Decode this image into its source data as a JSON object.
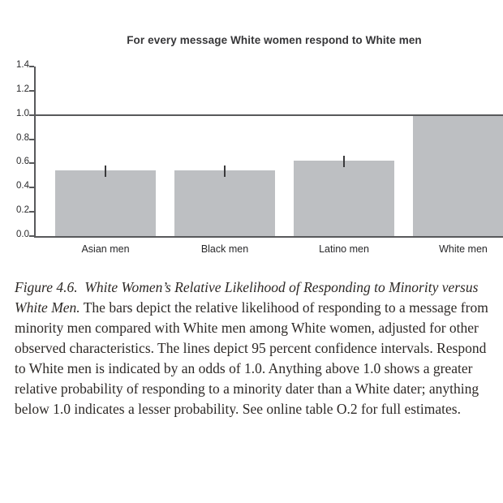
{
  "chart": {
    "title": "For every message White women respond to White men"
  },
  "chart_data": {
    "type": "bar",
    "title": "For every message White women respond to White men",
    "categories": [
      "Asian men",
      "Black men",
      "Latino men",
      "White men"
    ],
    "values": [
      0.54,
      0.54,
      0.62,
      1.0
    ],
    "error_bars": {
      "ci_low": [
        0.49,
        0.49,
        0.57,
        null
      ],
      "ci_high": [
        0.58,
        0.58,
        0.66,
        null
      ]
    },
    "reference_line_y": 1.0,
    "ylim": [
      0,
      1.4
    ],
    "yticks": [
      "0.0",
      "0.2",
      "0.4",
      "0.6",
      "0.8",
      "1.0",
      "1.2",
      "1.4"
    ],
    "xlabel": "",
    "ylabel": "",
    "grid": false,
    "legend": false,
    "bar_color": "#bdbfc2",
    "line_color": "#58595b",
    "error_bar_color": "#3a3a3c",
    "text_color": "#2b2b2d"
  },
  "caption": {
    "lines": [
      {
        "italic": "Figure 4.6.  White Women’s Relative Likelihood of Responding to Minority versus",
        "roman": ""
      },
      {
        "italic": "White Men.",
        "roman": " The bars depict the relative likelihood of responding to a message from"
      },
      {
        "italic": "",
        "roman": "minority men compared with White men among White women, adjusted for other"
      },
      {
        "italic": "",
        "roman": "observed characteristics. The lines depict 95 percent confidence intervals. Respond"
      },
      {
        "italic": "",
        "roman": "to White men is indicated by an odds of 1.0. Anything above 1.0 shows a greater"
      },
      {
        "italic": "",
        "roman": "relative probability of responding to a minority dater than a White dater; anything"
      },
      {
        "italic": "",
        "roman": "below 1.0 indicates a lesser probability. See online table O.2 for full estimates."
      }
    ]
  }
}
